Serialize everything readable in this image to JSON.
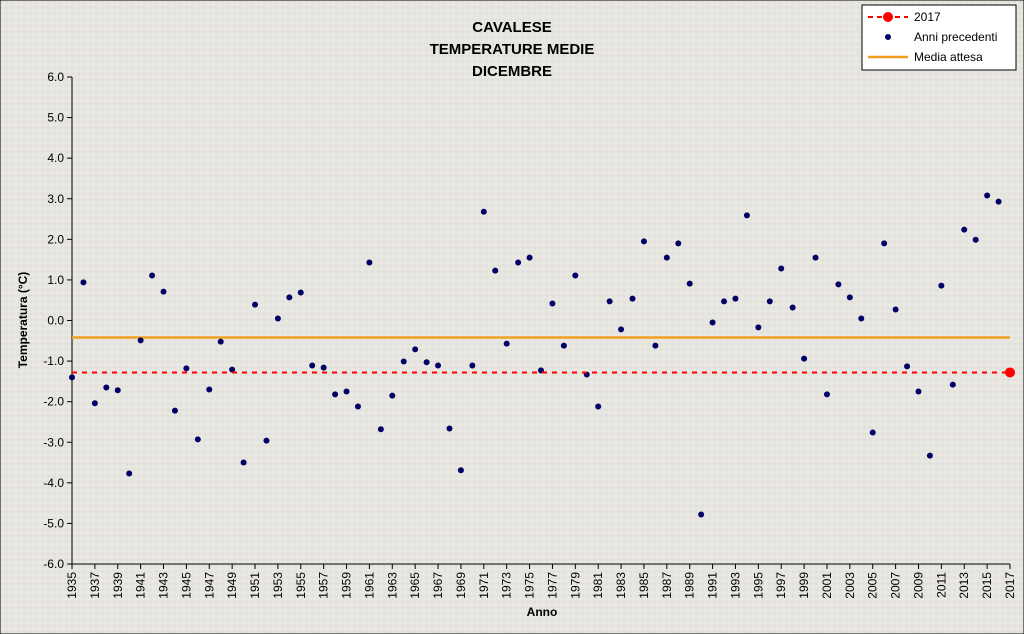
{
  "chart_data": {
    "type": "scatter",
    "title": [
      "CAVALESE",
      "TEMPERATURE MEDIE",
      "DICEMBRE"
    ],
    "x_label": "Anno",
    "y_label": "Temperatura (°C)",
    "x": [
      1935,
      1936,
      1937,
      1938,
      1939,
      1940,
      1941,
      1942,
      1943,
      1944,
      1945,
      1946,
      1947,
      1948,
      1949,
      1950,
      1951,
      1952,
      1953,
      1954,
      1955,
      1956,
      1957,
      1958,
      1959,
      1960,
      1961,
      1962,
      1963,
      1964,
      1965,
      1966,
      1967,
      1968,
      1969,
      1970,
      1971,
      1972,
      1973,
      1974,
      1975,
      1976,
      1977,
      1978,
      1979,
      1980,
      1981,
      1982,
      1983,
      1984,
      1985,
      1986,
      1987,
      1988,
      1989,
      1990,
      1991,
      1992,
      1993,
      1994,
      1995,
      1996,
      1997,
      1998,
      1999,
      2000,
      2001,
      2002,
      2003,
      2004,
      2005,
      2006,
      2007,
      2008,
      2009,
      2010,
      2011,
      2012,
      2013,
      2014,
      2015,
      2016,
      2017
    ],
    "xlim": [
      1935,
      2017
    ],
    "xticks": [
      1935,
      1937,
      1939,
      1941,
      1943,
      1945,
      1947,
      1949,
      1951,
      1953,
      1955,
      1957,
      1959,
      1961,
      1963,
      1965,
      1967,
      1969,
      1971,
      1973,
      1975,
      1977,
      1979,
      1981,
      1983,
      1985,
      1987,
      1989,
      1991,
      1993,
      1995,
      1997,
      1999,
      2001,
      2003,
      2005,
      2007,
      2009,
      2011,
      2013,
      2015,
      2017
    ],
    "ylim": [
      -6,
      6
    ],
    "yticks": [
      {
        "value": -6,
        "label": "-6.0"
      },
      {
        "value": -5,
        "label": "-5.0"
      },
      {
        "value": -4,
        "label": "-4.0"
      },
      {
        "value": -3,
        "label": "-3.0"
      },
      {
        "value": -2,
        "label": "-2.0"
      },
      {
        "value": -1,
        "label": "-1.0"
      },
      {
        "value": 0,
        "label": "0.0"
      },
      {
        "value": 1,
        "label": "1.0"
      },
      {
        "value": 2,
        "label": "2.0"
      },
      {
        "value": 3,
        "label": "3.0"
      },
      {
        "value": 4,
        "label": "4.0"
      },
      {
        "value": 5,
        "label": "5.0"
      },
      {
        "value": 6,
        "label": "6.0"
      }
    ],
    "legend": "top-right",
    "series": [
      {
        "name": "2017",
        "color": "#ff0000",
        "x": [
          2017
        ],
        "values": [
          -1.28
        ]
      },
      {
        "name": "Anni precedenti",
        "color": "#000066",
        "values": [
          -1.4,
          0.94,
          -2.04,
          -1.65,
          -1.72,
          -3.77,
          -0.49,
          1.11,
          0.71,
          -2.22,
          -1.18,
          -2.93,
          -1.7,
          -0.52,
          -1.21,
          -3.5,
          0.39,
          -2.96,
          0.05,
          0.57,
          0.69,
          -1.11,
          -1.16,
          -1.82,
          -1.75,
          -2.12,
          1.43,
          -2.68,
          -1.85,
          -1.01,
          -0.71,
          -1.03,
          -1.11,
          -2.66,
          -3.69,
          -1.11,
          2.68,
          1.23,
          -0.57,
          1.43,
          1.55,
          -1.23,
          0.42,
          -0.62,
          1.11,
          -1.33,
          -2.12,
          0.47,
          -0.22,
          0.54,
          1.95,
          -0.62,
          1.55,
          1.9,
          0.91,
          -4.78,
          -0.05,
          0.47,
          0.54,
          2.59,
          -0.17,
          0.47,
          1.28,
          0.32,
          -0.94,
          1.55,
          -1.82,
          0.89,
          0.57,
          0.05,
          -2.76,
          1.9,
          0.27,
          -1.13,
          -1.75,
          -3.33,
          0.86,
          -1.58,
          2.24,
          1.99,
          3.08,
          2.93,
          null
        ]
      },
      {
        "name": "Media attesa",
        "color": "#f0a020",
        "value": -0.42
      }
    ]
  }
}
